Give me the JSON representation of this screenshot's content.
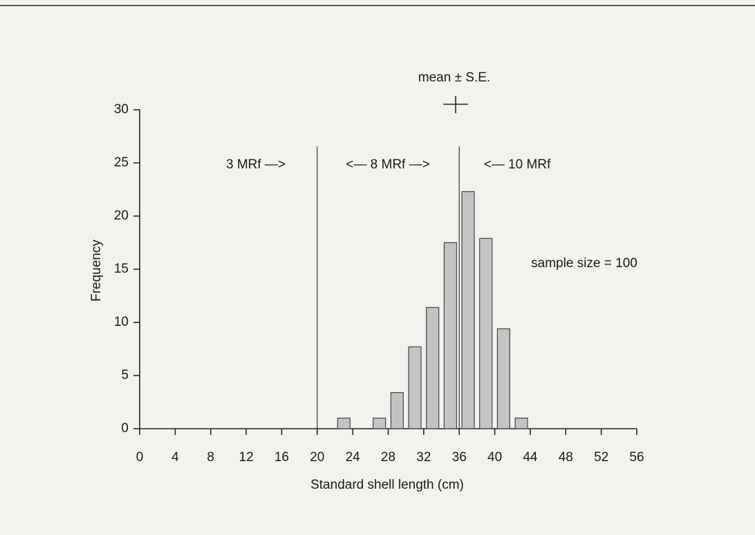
{
  "chart_data": {
    "type": "bar",
    "xlabel": "Standard shell length (cm)",
    "ylabel": "Frequency",
    "x": [
      23,
      27,
      29,
      31,
      33,
      35,
      37,
      39,
      41,
      43
    ],
    "values": [
      1,
      1,
      3.4,
      7.7,
      11.4,
      17.5,
      22.3,
      17.9,
      9.4,
      1
    ],
    "color": "#c4c4c4",
    "xlim": [
      0,
      56
    ],
    "xticks": [
      0,
      4,
      8,
      12,
      16,
      20,
      24,
      28,
      32,
      36,
      40,
      44,
      48,
      52,
      56
    ],
    "ylim": [
      0,
      30
    ],
    "yticks": [
      0,
      5,
      10,
      15,
      20,
      25,
      30
    ],
    "dividers": [
      20,
      36
    ],
    "mean": {
      "label": "mean ± S.E.",
      "value": 35.6,
      "se": 1.4
    },
    "annotations": [
      "3 MRf —>",
      "<— 8 MRf —>",
      "<— 10 MRf",
      "sample size = 100"
    ]
  }
}
